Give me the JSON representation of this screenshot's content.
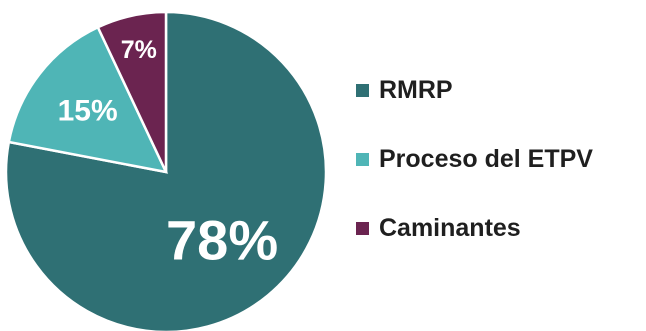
{
  "chart_data": {
    "type": "pie",
    "categories": [
      "RMRP",
      "Proceso del ETPV",
      "Caminantes"
    ],
    "values": [
      78,
      15,
      7
    ],
    "labels": [
      "78%",
      "15%",
      "7%"
    ],
    "colors": [
      "#2f7074",
      "#4fb5b6",
      "#6b2450"
    ],
    "legend_position": "right"
  }
}
